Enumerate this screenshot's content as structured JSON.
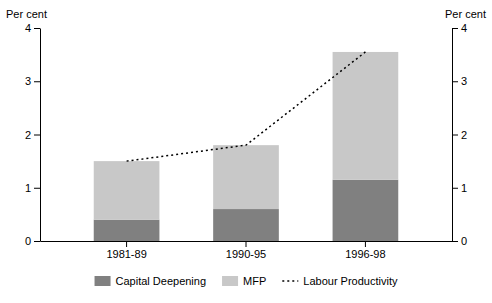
{
  "chart_data": {
    "type": "bar",
    "stacked": true,
    "categories": [
      "1981-89",
      "1990-95",
      "1996-98"
    ],
    "series": [
      {
        "name": "Capital Deepening",
        "color": "#808080",
        "values": [
          0.4,
          0.6,
          1.15
        ]
      },
      {
        "name": "MFP",
        "color": "#c8c8c8",
        "values": [
          1.1,
          1.2,
          2.4
        ]
      },
      {
        "name": "Labour Productivity",
        "type": "line",
        "color": "#000000",
        "line_style": "dotted",
        "values": [
          1.5,
          1.8,
          3.55
        ]
      }
    ],
    "ylim": [
      0,
      4
    ],
    "yticks": [
      0,
      1,
      2,
      3,
      4
    ],
    "y2lim": [
      0,
      4
    ],
    "y2ticks": [
      0,
      1,
      2,
      3,
      4
    ],
    "ylabel": "Per cent",
    "y2label": "Per cent",
    "grid": false,
    "legend": "bottom"
  }
}
